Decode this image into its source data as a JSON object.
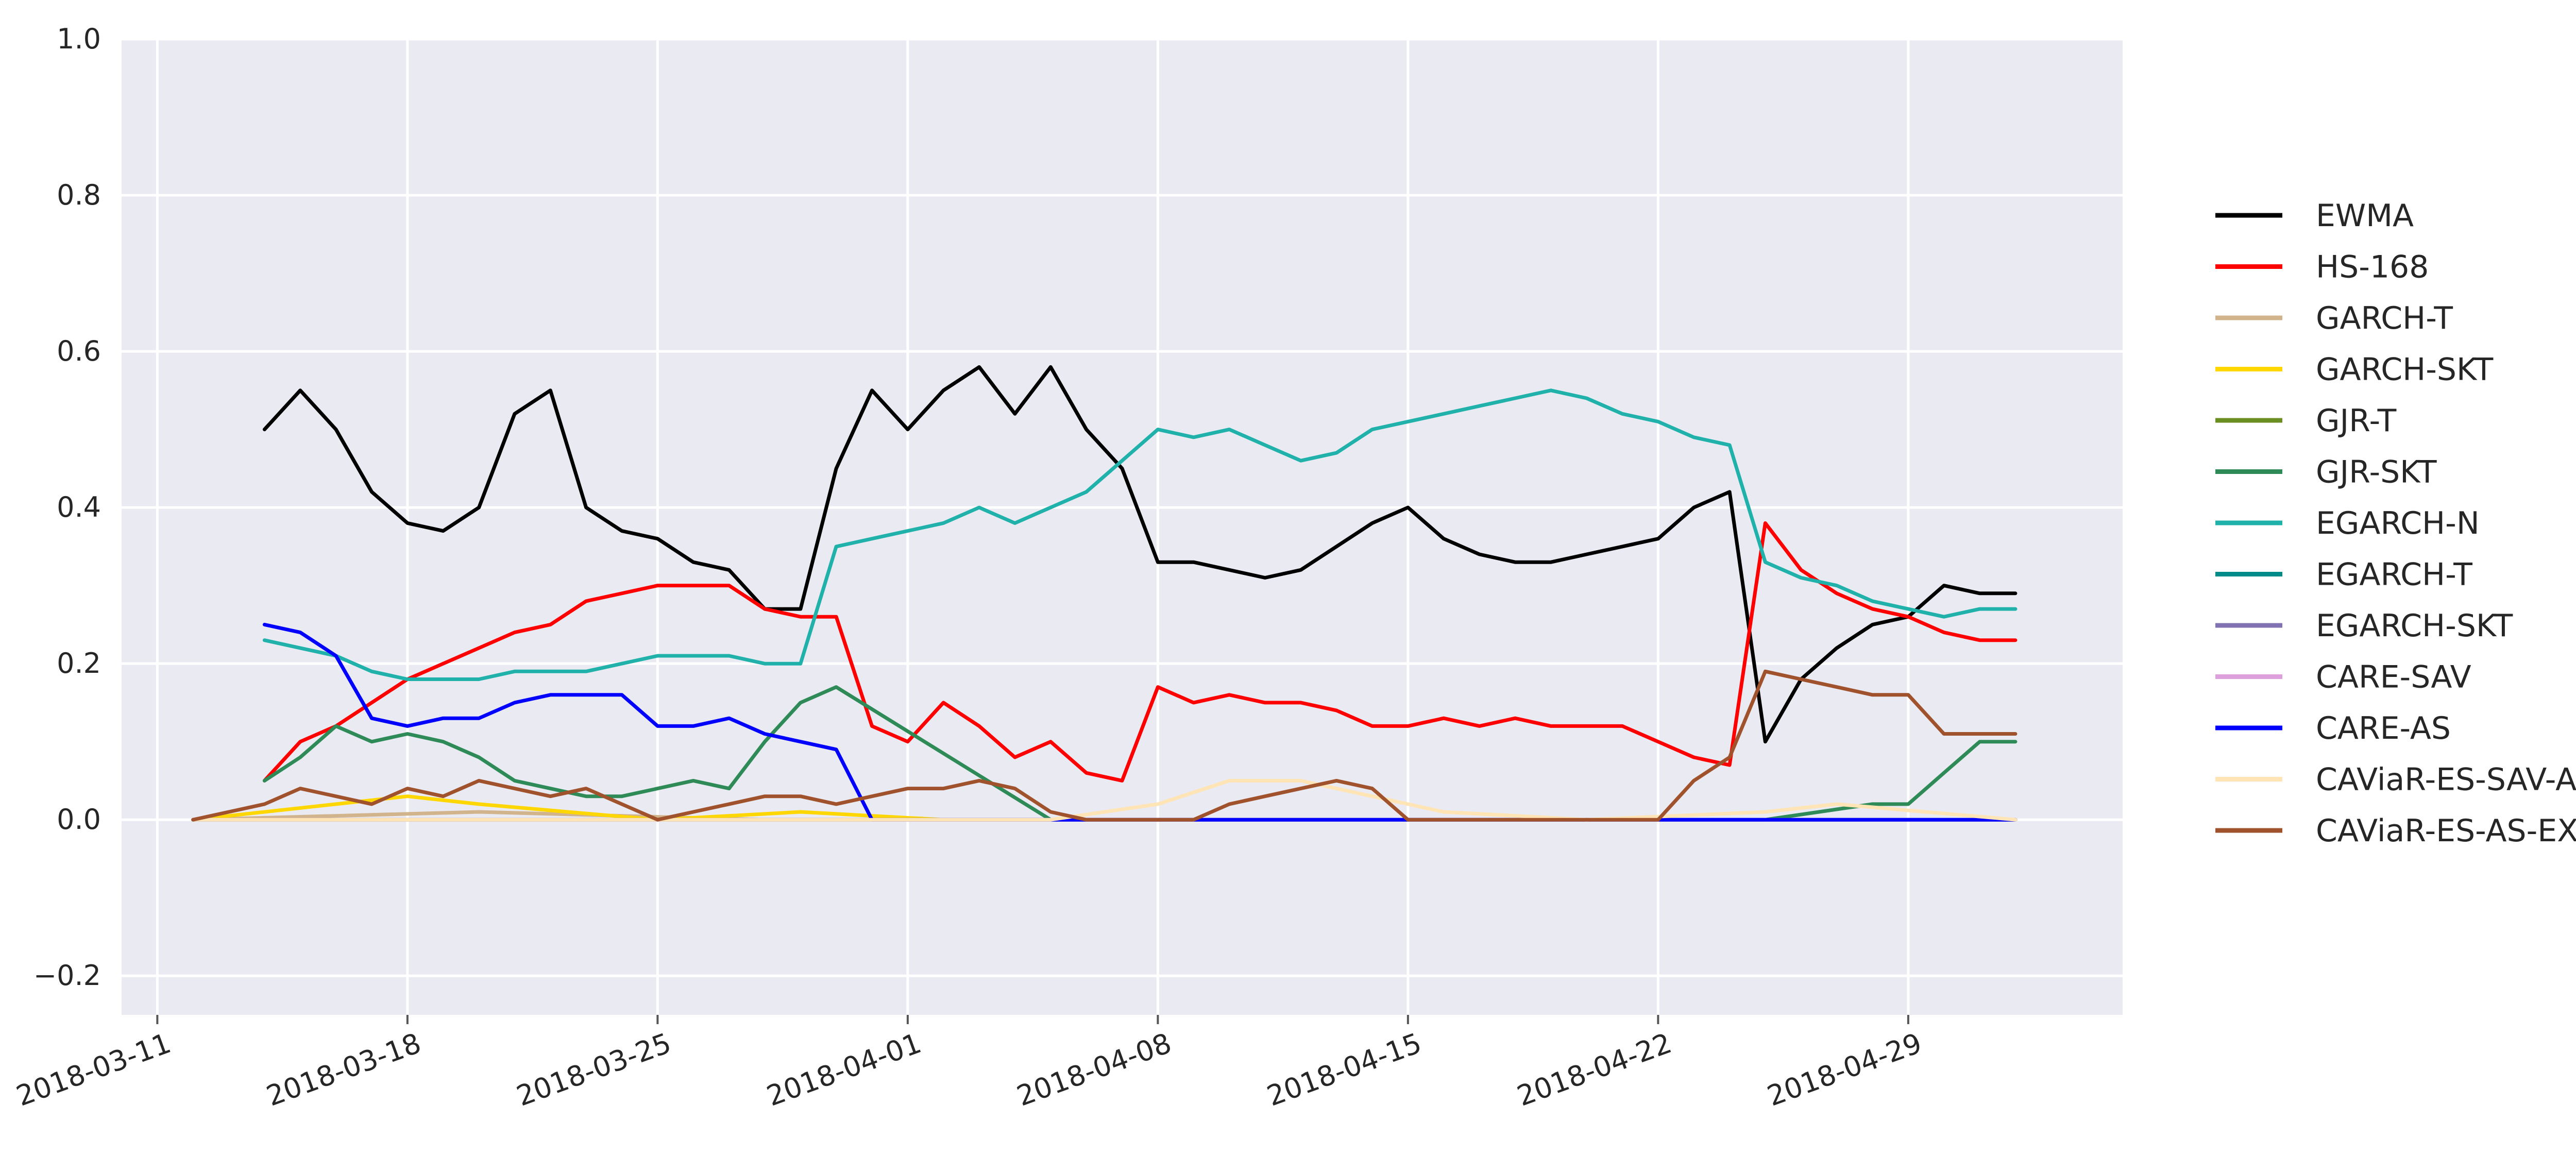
{
  "chart_data": {
    "type": "line",
    "title": "",
    "xlabel": "",
    "ylabel": "",
    "x_type": "date",
    "xlim": [
      "2018-03-10",
      "2018-05-05"
    ],
    "ylim": [
      -0.25,
      1.0
    ],
    "grid": true,
    "legend_position": "right-outside",
    "x_ticks": [
      "2018-03-11",
      "2018-03-18",
      "2018-03-25",
      "2018-04-01",
      "2018-04-08",
      "2018-04-15",
      "2018-04-22",
      "2018-04-29"
    ],
    "y_ticks": [
      -0.2,
      0.0,
      0.2,
      0.4,
      0.6,
      0.8,
      1.0
    ],
    "y_tick_labels": [
      "−0.2",
      "0.0",
      "0.2",
      "0.4",
      "0.6",
      "0.8",
      "1.0"
    ],
    "background_color": "#EAEAF2",
    "series": [
      {
        "name": "EWMA",
        "color": "#000000",
        "x": [
          "2018-03-14",
          "2018-03-15",
          "2018-03-16",
          "2018-03-17",
          "2018-03-18",
          "2018-03-19",
          "2018-03-20",
          "2018-03-21",
          "2018-03-22",
          "2018-03-23",
          "2018-03-24",
          "2018-03-25",
          "2018-03-26",
          "2018-03-27",
          "2018-03-28",
          "2018-03-29",
          "2018-03-30",
          "2018-03-31",
          "2018-04-01",
          "2018-04-02",
          "2018-04-03",
          "2018-04-04",
          "2018-04-05",
          "2018-04-06",
          "2018-04-07",
          "2018-04-08",
          "2018-04-09",
          "2018-04-10",
          "2018-04-11",
          "2018-04-12",
          "2018-04-13",
          "2018-04-14",
          "2018-04-15",
          "2018-04-16",
          "2018-04-17",
          "2018-04-18",
          "2018-04-19",
          "2018-04-20",
          "2018-04-21",
          "2018-04-22",
          "2018-04-23",
          "2018-04-24",
          "2018-04-25",
          "2018-04-26",
          "2018-04-27",
          "2018-04-28",
          "2018-04-29",
          "2018-04-30",
          "2018-05-01",
          "2018-05-02"
        ],
        "y": [
          0.5,
          0.55,
          0.5,
          0.42,
          0.38,
          0.37,
          0.4,
          0.52,
          0.55,
          0.4,
          0.37,
          0.36,
          0.33,
          0.32,
          0.27,
          0.27,
          0.45,
          0.55,
          0.5,
          0.55,
          0.58,
          0.52,
          0.58,
          0.5,
          0.45,
          0.33,
          0.33,
          0.32,
          0.31,
          0.32,
          0.35,
          0.38,
          0.4,
          0.36,
          0.34,
          0.33,
          0.33,
          0.34,
          0.35,
          0.36,
          0.4,
          0.42,
          0.1,
          0.18,
          0.22,
          0.25,
          0.26,
          0.3,
          0.29,
          0.29
        ]
      },
      {
        "name": "HS-168",
        "color": "#FF0000",
        "x": [
          "2018-03-14",
          "2018-03-15",
          "2018-03-16",
          "2018-03-17",
          "2018-03-18",
          "2018-03-19",
          "2018-03-20",
          "2018-03-21",
          "2018-03-22",
          "2018-03-23",
          "2018-03-24",
          "2018-03-25",
          "2018-03-26",
          "2018-03-27",
          "2018-03-28",
          "2018-03-29",
          "2018-03-30",
          "2018-03-31",
          "2018-04-01",
          "2018-04-02",
          "2018-04-03",
          "2018-04-04",
          "2018-04-05",
          "2018-04-06",
          "2018-04-07",
          "2018-04-08",
          "2018-04-09",
          "2018-04-10",
          "2018-04-11",
          "2018-04-12",
          "2018-04-13",
          "2018-04-14",
          "2018-04-15",
          "2018-04-16",
          "2018-04-17",
          "2018-04-18",
          "2018-04-19",
          "2018-04-20",
          "2018-04-21",
          "2018-04-22",
          "2018-04-23",
          "2018-04-24",
          "2018-04-25",
          "2018-04-26",
          "2018-04-27",
          "2018-04-28",
          "2018-04-29",
          "2018-04-30",
          "2018-05-01",
          "2018-05-02"
        ],
        "y": [
          0.05,
          0.1,
          0.12,
          0.15,
          0.18,
          0.2,
          0.22,
          0.24,
          0.25,
          0.28,
          0.29,
          0.3,
          0.3,
          0.3,
          0.27,
          0.26,
          0.26,
          0.12,
          0.1,
          0.15,
          0.12,
          0.08,
          0.1,
          0.06,
          0.05,
          0.17,
          0.15,
          0.16,
          0.15,
          0.15,
          0.14,
          0.12,
          0.12,
          0.13,
          0.12,
          0.13,
          0.12,
          0.12,
          0.12,
          0.1,
          0.08,
          0.07,
          0.38,
          0.32,
          0.29,
          0.27,
          0.26,
          0.24,
          0.23,
          0.23
        ]
      },
      {
        "name": "GARCH-T",
        "color": "#D2B48C",
        "x": [
          "2018-03-12",
          "2018-03-20",
          "2018-03-28",
          "2018-04-05",
          "2018-04-12",
          "2018-04-20",
          "2018-04-28",
          "2018-05-02"
        ],
        "y": [
          0.0,
          0.01,
          0.0,
          0.0,
          0.0,
          0.0,
          0.0,
          0.0
        ]
      },
      {
        "name": "GARCH-SKT",
        "color": "#FFD700",
        "x": [
          "2018-03-12",
          "2018-03-16",
          "2018-03-18",
          "2018-03-20",
          "2018-03-25",
          "2018-03-29",
          "2018-04-02",
          "2018-04-10",
          "2018-04-20",
          "2018-05-02"
        ],
        "y": [
          0.0,
          0.02,
          0.03,
          0.02,
          0.0,
          0.01,
          0.0,
          0.0,
          0.0,
          0.0
        ]
      },
      {
        "name": "GJR-T",
        "color": "#6B8E23",
        "x": [
          "2018-03-12",
          "2018-03-20",
          "2018-03-28",
          "2018-04-05",
          "2018-04-15",
          "2018-04-25",
          "2018-05-02"
        ],
        "y": [
          0.0,
          0.0,
          0.0,
          0.0,
          0.0,
          0.0,
          0.0
        ]
      },
      {
        "name": "GJR-SKT",
        "color": "#2E8B57",
        "x": [
          "2018-03-14",
          "2018-03-15",
          "2018-03-16",
          "2018-03-17",
          "2018-03-18",
          "2018-03-19",
          "2018-03-20",
          "2018-03-21",
          "2018-03-22",
          "2018-03-23",
          "2018-03-24",
          "2018-03-25",
          "2018-03-26",
          "2018-03-27",
          "2018-03-28",
          "2018-03-29",
          "2018-03-30",
          "2018-04-05",
          "2018-04-15",
          "2018-04-25",
          "2018-04-28",
          "2018-04-29",
          "2018-04-30",
          "2018-05-01",
          "2018-05-02"
        ],
        "y": [
          0.05,
          0.08,
          0.12,
          0.1,
          0.11,
          0.1,
          0.08,
          0.05,
          0.04,
          0.03,
          0.03,
          0.04,
          0.05,
          0.04,
          0.1,
          0.15,
          0.17,
          0.0,
          0.0,
          0.0,
          0.02,
          0.02,
          0.06,
          0.1,
          0.1
        ]
      },
      {
        "name": "EGARCH-N",
        "color": "#20B2AA",
        "x": [
          "2018-03-14",
          "2018-03-15",
          "2018-03-16",
          "2018-03-17",
          "2018-03-18",
          "2018-03-19",
          "2018-03-20",
          "2018-03-21",
          "2018-03-22",
          "2018-03-23",
          "2018-03-24",
          "2018-03-25",
          "2018-03-26",
          "2018-03-27",
          "2018-03-28",
          "2018-03-29",
          "2018-03-30",
          "2018-03-31",
          "2018-04-01",
          "2018-04-02",
          "2018-04-03",
          "2018-04-04",
          "2018-04-05",
          "2018-04-06",
          "2018-04-07",
          "2018-04-08",
          "2018-04-09",
          "2018-04-10",
          "2018-04-11",
          "2018-04-12",
          "2018-04-13",
          "2018-04-14",
          "2018-04-15",
          "2018-04-16",
          "2018-04-17",
          "2018-04-18",
          "2018-04-19",
          "2018-04-20",
          "2018-04-21",
          "2018-04-22",
          "2018-04-23",
          "2018-04-24",
          "2018-04-25",
          "2018-04-26",
          "2018-04-27",
          "2018-04-28",
          "2018-04-29",
          "2018-04-30",
          "2018-05-01",
          "2018-05-02"
        ],
        "y": [
          0.23,
          0.22,
          0.21,
          0.19,
          0.18,
          0.18,
          0.18,
          0.19,
          0.19,
          0.19,
          0.2,
          0.21,
          0.21,
          0.21,
          0.2,
          0.2,
          0.35,
          0.36,
          0.37,
          0.38,
          0.4,
          0.38,
          0.4,
          0.42,
          0.46,
          0.5,
          0.49,
          0.5,
          0.48,
          0.46,
          0.47,
          0.5,
          0.51,
          0.52,
          0.53,
          0.54,
          0.55,
          0.54,
          0.52,
          0.51,
          0.49,
          0.48,
          0.33,
          0.31,
          0.3,
          0.28,
          0.27,
          0.26,
          0.27,
          0.27
        ]
      },
      {
        "name": "EGARCH-T",
        "color": "#008B8B",
        "x": [
          "2018-03-12",
          "2018-03-20",
          "2018-03-28",
          "2018-04-05",
          "2018-04-15",
          "2018-04-25",
          "2018-05-02"
        ],
        "y": [
          0.0,
          0.0,
          0.0,
          0.0,
          0.0,
          0.0,
          0.0
        ]
      },
      {
        "name": "EGARCH-SKT",
        "color": "#8172B2",
        "x": [
          "2018-03-12",
          "2018-03-20",
          "2018-03-28",
          "2018-04-05",
          "2018-04-15",
          "2018-04-25",
          "2018-05-02"
        ],
        "y": [
          0.0,
          0.0,
          0.0,
          0.0,
          0.0,
          0.0,
          0.0
        ]
      },
      {
        "name": "CARE-SAV",
        "color": "#DDA0DD",
        "x": [
          "2018-03-12",
          "2018-03-20",
          "2018-03-28",
          "2018-04-05",
          "2018-04-15",
          "2018-04-25",
          "2018-05-02"
        ],
        "y": [
          0.0,
          0.0,
          0.0,
          0.0,
          0.0,
          0.0,
          0.0
        ]
      },
      {
        "name": "CARE-AS",
        "color": "#0000FF",
        "x": [
          "2018-03-14",
          "2018-03-15",
          "2018-03-16",
          "2018-03-17",
          "2018-03-18",
          "2018-03-19",
          "2018-03-20",
          "2018-03-21",
          "2018-03-22",
          "2018-03-23",
          "2018-03-24",
          "2018-03-25",
          "2018-03-26",
          "2018-03-27",
          "2018-03-28",
          "2018-03-29",
          "2018-03-30",
          "2018-03-31",
          "2018-04-05",
          "2018-04-10",
          "2018-04-15",
          "2018-04-20",
          "2018-04-25",
          "2018-04-26",
          "2018-04-27",
          "2018-05-02"
        ],
        "y": [
          0.25,
          0.24,
          0.21,
          0.13,
          0.12,
          0.13,
          0.13,
          0.15,
          0.16,
          0.16,
          0.16,
          0.12,
          0.12,
          0.13,
          0.11,
          0.1,
          0.09,
          0.0,
          0.0,
          0.0,
          0.0,
          0.0,
          0.0,
          0.0,
          0.0,
          0.0
        ]
      },
      {
        "name": "CAViaR-ES-SAV-AR",
        "color": "#FFE4B5",
        "x": [
          "2018-03-12",
          "2018-03-20",
          "2018-03-28",
          "2018-04-05",
          "2018-04-08",
          "2018-04-10",
          "2018-04-12",
          "2018-04-14",
          "2018-04-16",
          "2018-04-20",
          "2018-04-25",
          "2018-04-27",
          "2018-05-02"
        ],
        "y": [
          0.0,
          0.0,
          0.0,
          0.0,
          0.02,
          0.05,
          0.05,
          0.03,
          0.01,
          0.0,
          0.01,
          0.02,
          0.0
        ]
      },
      {
        "name": "CAViaR-ES-AS-EXP",
        "color": "#A0522D",
        "x": [
          "2018-03-12",
          "2018-03-13",
          "2018-03-14",
          "2018-03-15",
          "2018-03-16",
          "2018-03-17",
          "2018-03-18",
          "2018-03-19",
          "2018-03-20",
          "2018-03-21",
          "2018-03-22",
          "2018-03-23",
          "2018-03-24",
          "2018-03-25",
          "2018-03-26",
          "2018-03-27",
          "2018-03-28",
          "2018-03-29",
          "2018-03-30",
          "2018-03-31",
          "2018-04-01",
          "2018-04-02",
          "2018-04-03",
          "2018-04-04",
          "2018-04-05",
          "2018-04-06",
          "2018-04-07",
          "2018-04-08",
          "2018-04-09",
          "2018-04-10",
          "2018-04-11",
          "2018-04-12",
          "2018-04-13",
          "2018-04-14",
          "2018-04-15",
          "2018-04-16",
          "2018-04-17",
          "2018-04-18",
          "2018-04-19",
          "2018-04-20",
          "2018-04-21",
          "2018-04-22",
          "2018-04-23",
          "2018-04-24",
          "2018-04-25",
          "2018-04-26",
          "2018-04-27",
          "2018-04-28",
          "2018-04-29",
          "2018-04-30",
          "2018-05-01",
          "2018-05-02"
        ],
        "y": [
          0.0,
          0.01,
          0.02,
          0.04,
          0.03,
          0.02,
          0.04,
          0.03,
          0.05,
          0.04,
          0.03,
          0.04,
          0.02,
          0.0,
          0.01,
          0.02,
          0.03,
          0.03,
          0.02,
          0.03,
          0.04,
          0.04,
          0.05,
          0.04,
          0.01,
          0.0,
          0.0,
          0.0,
          0.0,
          0.02,
          0.03,
          0.04,
          0.05,
          0.04,
          0.0,
          0.0,
          0.0,
          0.0,
          0.0,
          0.0,
          0.0,
          0.0,
          0.05,
          0.08,
          0.19,
          0.18,
          0.17,
          0.16,
          0.16,
          0.11,
          0.11,
          0.11
        ]
      }
    ]
  }
}
